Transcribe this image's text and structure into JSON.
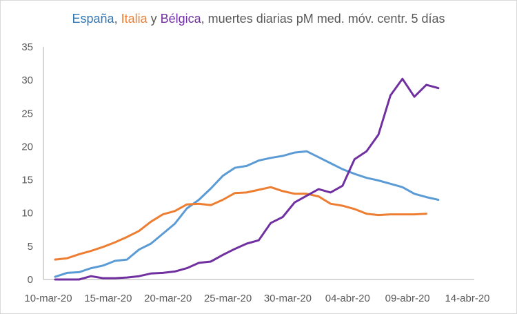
{
  "chart_data": {
    "type": "line",
    "title": {
      "parts": [
        {
          "text": "España",
          "color": "#2E75B6"
        },
        {
          "text": ", ",
          "color": "#595959"
        },
        {
          "text": "Italia",
          "color": "#ED7D31"
        },
        {
          "text": " y ",
          "color": "#595959"
        },
        {
          "text": "Bélgica",
          "color": "#7030A0"
        },
        {
          "text": ", muertes diarias pM med. móv. centr. 5 días",
          "color": "#595959"
        }
      ]
    },
    "xlabel": "",
    "ylabel": "",
    "ylim": [
      0,
      35
    ],
    "yticks": [
      "0",
      "5",
      "10",
      "15",
      "20",
      "25",
      "30",
      "35"
    ],
    "xlim_days": [
      0,
      35
    ],
    "xticks": [
      "10-mar-20",
      "15-mar-20",
      "20-mar-20",
      "25-mar-20",
      "30-mar-20",
      "04-abr-20",
      "09-abr-20",
      "14-abr-20"
    ],
    "grid": false,
    "series": [
      {
        "name": "España",
        "color": "#5B9BD5",
        "start_day": 0,
        "values": [
          0.4,
          1.0,
          1.1,
          1.7,
          2.1,
          2.8,
          3.0,
          4.5,
          5.4,
          6.9,
          8.4,
          10.7,
          12.0,
          13.7,
          15.6,
          16.8,
          17.1,
          17.9,
          18.3,
          18.6,
          19.1,
          19.3,
          18.4,
          17.5,
          16.6,
          15.9,
          15.3,
          14.9,
          14.4,
          13.9,
          12.9,
          12.4,
          12.0
        ]
      },
      {
        "name": "Italia",
        "color": "#ED7D31",
        "start_day": 0,
        "values": [
          3.0,
          3.2,
          3.8,
          4.3,
          4.9,
          5.6,
          6.4,
          7.3,
          8.7,
          9.8,
          10.3,
          11.3,
          11.4,
          11.2,
          12.0,
          13.0,
          13.1,
          13.5,
          13.9,
          13.3,
          12.9,
          12.9,
          12.5,
          11.4,
          11.1,
          10.6,
          9.9,
          9.7,
          9.8,
          9.8,
          9.8,
          9.9
        ]
      },
      {
        "name": "Bélgica",
        "color": "#7030A0",
        "start_day": 0,
        "values": [
          0.0,
          0.0,
          0.0,
          0.5,
          0.2,
          0.2,
          0.3,
          0.5,
          0.9,
          1.0,
          1.2,
          1.7,
          2.5,
          2.7,
          3.7,
          4.6,
          5.4,
          5.9,
          8.5,
          9.4,
          11.6,
          12.6,
          13.6,
          13.1,
          14.1,
          18.1,
          19.3,
          21.8,
          27.7,
          30.2,
          27.5,
          29.3,
          28.8
        ]
      }
    ]
  }
}
